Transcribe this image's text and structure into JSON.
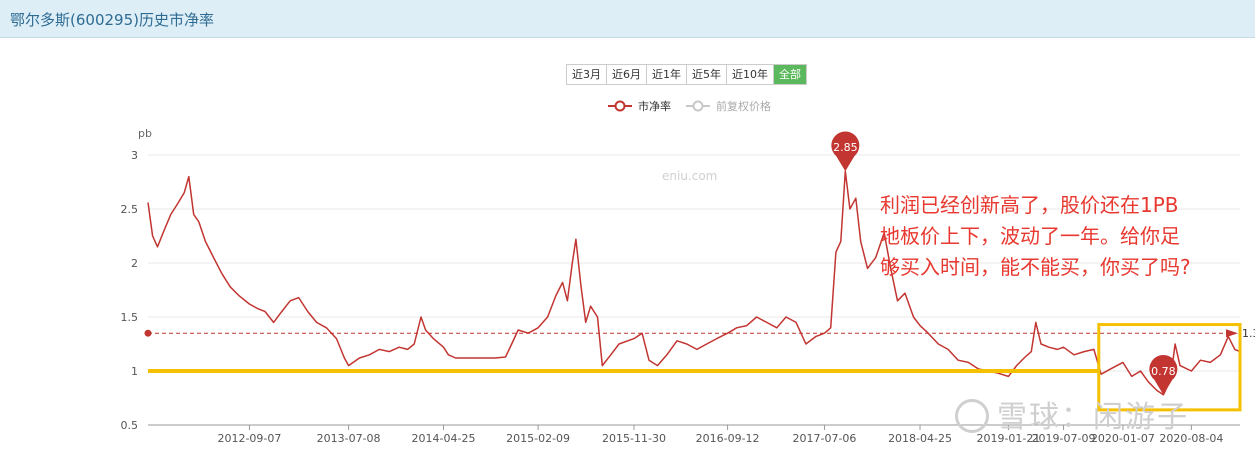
{
  "header": {
    "title": "鄂尔多斯(600295)历史市净率"
  },
  "range_tabs": [
    {
      "label": "近3月",
      "active": false
    },
    {
      "label": "近6月",
      "active": false
    },
    {
      "label": "近1年",
      "active": false
    },
    {
      "label": "近5年",
      "active": false
    },
    {
      "label": "近10年",
      "active": false
    },
    {
      "label": "全部",
      "active": true
    }
  ],
  "annotation": {
    "lines": [
      "利润已经创新高了，股价还在1PB",
      "地板价上下，波动了一年。给你足",
      "够买入时间，能不能买，你买了吗?"
    ]
  },
  "watermark": {
    "text": "雪球：闲游子",
    "site": "eniu.com"
  },
  "colors": {
    "series": "#c23531",
    "muted": "#c8c8c8",
    "highlight": "#f5c000",
    "annotation": "#e8382f",
    "active_tab": "#5cb85c"
  },
  "chart_data": {
    "type": "line",
    "title": "",
    "xlabel": "",
    "ylabel": "pb",
    "ylim": [
      0.5,
      3
    ],
    "y_ticks": [
      "0.5",
      "1",
      "1.5",
      "2",
      "2.5",
      "3"
    ],
    "x_start": "2011-11-01",
    "x_end": "2020-12-31",
    "x_ticks": [
      "2012-09-07",
      "2013-07-08",
      "2014-04-25",
      "2015-02-09",
      "2015-11-30",
      "2016-09-12",
      "2017-07-06",
      "2018-04-25",
      "2019-01-21",
      "2019-07-09",
      "2020-01-07",
      "2020-08-04"
    ],
    "grid": true,
    "legend": {
      "placement": "top-center",
      "items": [
        {
          "name": "市净率",
          "active": true
        },
        {
          "name": "前复权价格",
          "active": false
        }
      ]
    },
    "series": [
      {
        "name": "市净率",
        "points": [
          [
            "2011-11-01",
            2.56
          ],
          [
            "2011-11-15",
            2.25
          ],
          [
            "2011-11-30",
            2.15
          ],
          [
            "2011-12-20",
            2.3
          ],
          [
            "2012-01-10",
            2.45
          ],
          [
            "2012-01-31",
            2.55
          ],
          [
            "2012-02-20",
            2.65
          ],
          [
            "2012-03-05",
            2.8
          ],
          [
            "2012-03-20",
            2.45
          ],
          [
            "2012-04-05",
            2.38
          ],
          [
            "2012-04-25",
            2.2
          ],
          [
            "2012-05-20",
            2.05
          ],
          [
            "2012-06-15",
            1.9
          ],
          [
            "2012-07-10",
            1.78
          ],
          [
            "2012-08-05",
            1.7
          ],
          [
            "2012-09-07",
            1.62
          ],
          [
            "2012-10-01",
            1.58
          ],
          [
            "2012-10-25",
            1.55
          ],
          [
            "2012-11-20",
            1.45
          ],
          [
            "2012-12-15",
            1.55
          ],
          [
            "2013-01-10",
            1.65
          ],
          [
            "2013-02-05",
            1.68
          ],
          [
            "2013-03-05",
            1.55
          ],
          [
            "2013-04-01",
            1.45
          ],
          [
            "2013-05-01",
            1.4
          ],
          [
            "2013-06-01",
            1.3
          ],
          [
            "2013-06-25",
            1.12
          ],
          [
            "2013-07-08",
            1.05
          ],
          [
            "2013-08-10",
            1.12
          ],
          [
            "2013-09-10",
            1.15
          ],
          [
            "2013-10-10",
            1.2
          ],
          [
            "2013-11-10",
            1.18
          ],
          [
            "2013-12-10",
            1.22
          ],
          [
            "2014-01-05",
            1.2
          ],
          [
            "2014-01-25",
            1.25
          ],
          [
            "2014-02-15",
            1.5
          ],
          [
            "2014-03-01",
            1.38
          ],
          [
            "2014-03-25",
            1.3
          ],
          [
            "2014-04-25",
            1.22
          ],
          [
            "2014-05-10",
            1.15
          ],
          [
            "2014-06-01",
            1.12
          ],
          [
            "2014-07-01",
            1.12
          ],
          [
            "2014-08-01",
            1.12
          ],
          [
            "2014-09-01",
            1.12
          ],
          [
            "2014-10-01",
            1.12
          ],
          [
            "2014-11-01",
            1.13
          ],
          [
            "2014-11-20",
            1.25
          ],
          [
            "2014-12-10",
            1.38
          ],
          [
            "2015-01-10",
            1.35
          ],
          [
            "2015-02-09",
            1.4
          ],
          [
            "2015-03-10",
            1.5
          ],
          [
            "2015-04-05",
            1.7
          ],
          [
            "2015-04-25",
            1.82
          ],
          [
            "2015-05-10",
            1.65
          ],
          [
            "2015-05-25",
            2.0
          ],
          [
            "2015-06-05",
            2.22
          ],
          [
            "2015-06-20",
            1.8
          ],
          [
            "2015-07-05",
            1.45
          ],
          [
            "2015-07-20",
            1.6
          ],
          [
            "2015-08-10",
            1.5
          ],
          [
            "2015-08-25",
            1.05
          ],
          [
            "2015-09-20",
            1.15
          ],
          [
            "2015-10-15",
            1.25
          ],
          [
            "2015-11-30",
            1.3
          ],
          [
            "2015-12-25",
            1.35
          ],
          [
            "2016-01-15",
            1.1
          ],
          [
            "2016-02-10",
            1.05
          ],
          [
            "2016-03-10",
            1.15
          ],
          [
            "2016-04-10",
            1.28
          ],
          [
            "2016-05-10",
            1.25
          ],
          [
            "2016-06-10",
            1.2
          ],
          [
            "2016-07-10",
            1.25
          ],
          [
            "2016-08-10",
            1.3
          ],
          [
            "2016-09-12",
            1.35
          ],
          [
            "2016-10-10",
            1.4
          ],
          [
            "2016-11-10",
            1.42
          ],
          [
            "2016-12-10",
            1.5
          ],
          [
            "2017-01-10",
            1.45
          ],
          [
            "2017-02-10",
            1.4
          ],
          [
            "2017-03-10",
            1.5
          ],
          [
            "2017-04-10",
            1.45
          ],
          [
            "2017-05-10",
            1.25
          ],
          [
            "2017-06-10",
            1.32
          ],
          [
            "2017-07-06",
            1.35
          ],
          [
            "2017-07-25",
            1.4
          ],
          [
            "2017-08-10",
            2.1
          ],
          [
            "2017-08-25",
            2.2
          ],
          [
            "2017-09-08",
            2.85
          ],
          [
            "2017-09-22",
            2.5
          ],
          [
            "2017-10-10",
            2.6
          ],
          [
            "2017-10-25",
            2.2
          ],
          [
            "2017-11-15",
            1.95
          ],
          [
            "2017-12-10",
            2.05
          ],
          [
            "2018-01-05",
            2.28
          ],
          [
            "2018-01-25",
            1.95
          ],
          [
            "2018-02-15",
            1.65
          ],
          [
            "2018-03-10",
            1.72
          ],
          [
            "2018-04-05",
            1.5
          ],
          [
            "2018-04-25",
            1.42
          ],
          [
            "2018-05-20",
            1.35
          ],
          [
            "2018-06-20",
            1.25
          ],
          [
            "2018-07-20",
            1.2
          ],
          [
            "2018-08-20",
            1.1
          ],
          [
            "2018-09-20",
            1.08
          ],
          [
            "2018-10-20",
            1.02
          ],
          [
            "2018-11-20",
            1.0
          ],
          [
            "2018-12-20",
            0.98
          ],
          [
            "2019-01-21",
            0.95
          ],
          [
            "2019-02-15",
            1.05
          ],
          [
            "2019-03-10",
            1.12
          ],
          [
            "2019-04-01",
            1.18
          ],
          [
            "2019-04-15",
            1.45
          ],
          [
            "2019-05-01",
            1.25
          ],
          [
            "2019-05-25",
            1.22
          ],
          [
            "2019-06-20",
            1.2
          ],
          [
            "2019-07-09",
            1.22
          ],
          [
            "2019-08-10",
            1.15
          ],
          [
            "2019-09-10",
            1.18
          ],
          [
            "2019-10-10",
            1.2
          ],
          [
            "2019-11-01",
            0.97
          ],
          [
            "2019-12-01",
            1.02
          ],
          [
            "2020-01-07",
            1.08
          ],
          [
            "2020-02-03",
            0.95
          ],
          [
            "2020-03-01",
            1.0
          ],
          [
            "2020-03-25",
            0.9
          ],
          [
            "2020-04-20",
            0.82
          ],
          [
            "2020-05-10",
            0.78
          ],
          [
            "2020-06-01",
            0.92
          ],
          [
            "2020-06-15",
            1.25
          ],
          [
            "2020-06-30",
            1.05
          ],
          [
            "2020-08-04",
            1.0
          ],
          [
            "2020-09-01",
            1.1
          ],
          [
            "2020-10-01",
            1.08
          ],
          [
            "2020-11-01",
            1.15
          ],
          [
            "2020-11-25",
            1.32
          ],
          [
            "2020-12-15",
            1.2
          ],
          [
            "2020-12-31",
            1.18
          ]
        ]
      }
    ],
    "markers": [
      {
        "label": "2.85",
        "date": "2017-09-08",
        "value": 2.85
      },
      {
        "label": "0.78",
        "date": "2020-05-10",
        "value": 0.78
      }
    ],
    "reference_lines": [
      {
        "value": 1.35,
        "style": "dashed",
        "label": "1.3"
      },
      {
        "value": 1.0,
        "style": "highlight"
      }
    ],
    "highlight_box": {
      "date_start": "2019-10-25",
      "date_end": "2020-12-31",
      "value_low": 0.64,
      "value_high": 1.43
    }
  }
}
